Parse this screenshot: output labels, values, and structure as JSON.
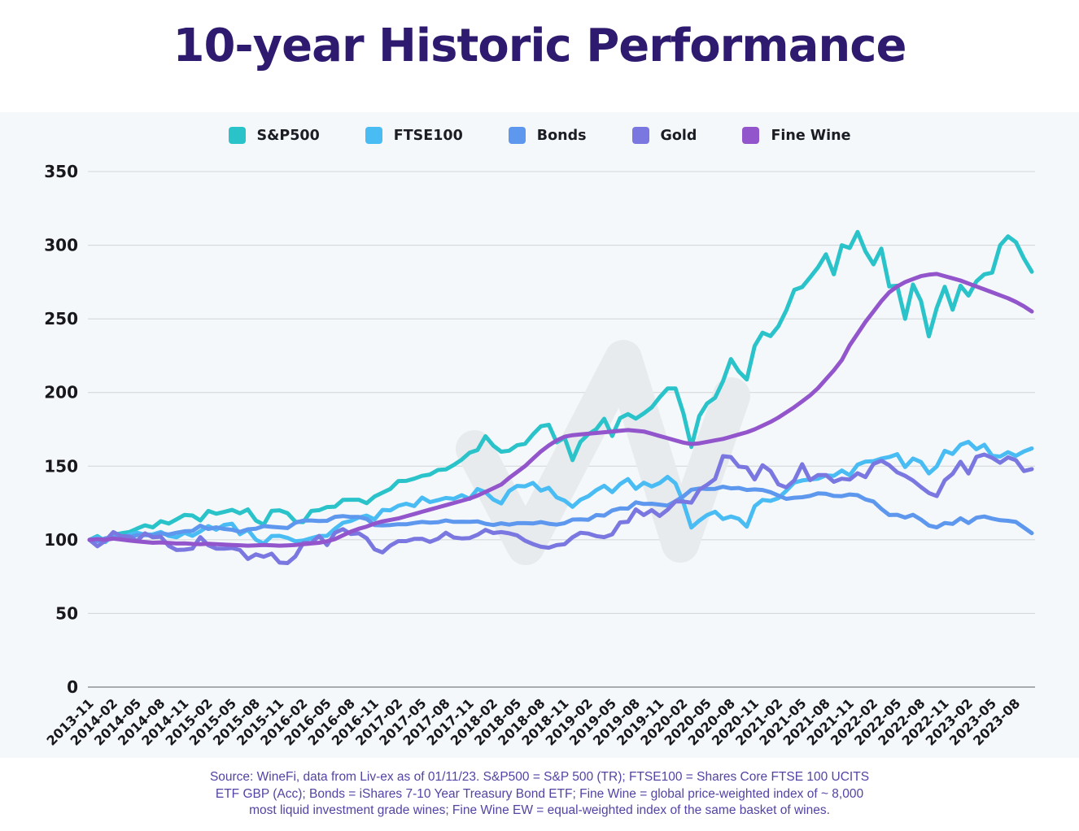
{
  "page": {
    "title": "10-year Historic Performance",
    "title_color": "#2e1a6e",
    "panel_tint": "#f4f8fa"
  },
  "chart_data": {
    "type": "line",
    "x_start": "2013-11",
    "x_end": "2023-10",
    "x_interval": "monthly",
    "tick_every_n_months": 3,
    "tick_labels": [
      "2013-11",
      "2014-02",
      "2014-05",
      "2014-08",
      "2014-11",
      "2015-02",
      "2015-05",
      "2015-08",
      "2015-11",
      "2016-02",
      "2016-05",
      "2016-08",
      "2016-11",
      "2017-02",
      "2017-05",
      "2017-08",
      "2017-11",
      "2018-02",
      "2018-05",
      "2018-08",
      "2018-11",
      "2019-02",
      "2019-05",
      "2019-08",
      "2019-11",
      "2020-02",
      "2020-05",
      "2020-08",
      "2020-11",
      "2021-02",
      "2021-05",
      "2021-08",
      "2021-11",
      "2022-02",
      "2022-05",
      "2022-08",
      "2022-11",
      "2023-02",
      "2023-05",
      "2023-08"
    ],
    "yticks": [
      "0",
      "50",
      "100",
      "150",
      "200",
      "250",
      "300",
      "350"
    ],
    "ylim": [
      0,
      350
    ],
    "grid": "horizontal",
    "grid_color": "#d6d9db",
    "baseline_color": "#8e9398",
    "tick_label_color": "#17171c",
    "legend_position": "top",
    "series": [
      {
        "name": "S&P500",
        "color": "#2ac3ca",
        "values": [
          100,
          102.5,
          99,
          103.4,
          104.4,
          105.2,
          107.6,
          109.8,
          108.4,
          112.6,
          111,
          113.9,
          116.9,
          116.5,
          113.1,
          119.6,
          117.7,
          118.9,
          120.3,
          118,
          120.6,
          113.1,
          110.3,
          119.7,
          120,
          118.1,
          112.3,
          112,
          119.6,
          120.1,
          122.2,
          122.5,
          127.1,
          127.2,
          127.2,
          124.9,
          129.4,
          132,
          134.6,
          139.9,
          140,
          141.5,
          143.4,
          144.3,
          147.4,
          147.8,
          150.8,
          154.4,
          159.1,
          160.9,
          170.3,
          163.9,
          159.8,
          160.5,
          164.2,
          165.2,
          171.5,
          177.1,
          178.1,
          166.1,
          169.3,
          154.1,
          166.5,
          171.7,
          175.1,
          182.2,
          170.5,
          182.6,
          185.3,
          182.3,
          185.8,
          189.9,
          196.7,
          202.7,
          202.7,
          186,
          163,
          184,
          192.6,
          196.5,
          207.7,
          222.7,
          214.3,
          208.8,
          231.6,
          240.6,
          238.3,
          245,
          255.8,
          269.7,
          271.6,
          278.1,
          285,
          293.8,
          280.3,
          300,
          298.1,
          309,
          295.8,
          287,
          297.7,
          272,
          272.5,
          250,
          273.3,
          262.1,
          238.1,
          257.5,
          271.8,
          256.2,
          272.5,
          265.8,
          275.5,
          280.2,
          281.4,
          300,
          306,
          302,
          291,
          282
        ]
      },
      {
        "name": "FTSE100",
        "color": "#49bcf4",
        "values": [
          100,
          101.8,
          98.5,
          103.3,
          100.4,
          103.5,
          104.8,
          103.5,
          103.6,
          105.3,
          102.6,
          101.7,
          104.8,
          102.7,
          105.8,
          109.3,
          106.8,
          110.1,
          110.9,
          103.8,
          106.9,
          100.1,
          97.4,
          102.5,
          102.7,
          101.3,
          99,
          99.5,
          101.1,
          102.5,
          102.7,
          107.5,
          111.5,
          112.8,
          115.1,
          116.4,
          113.9,
          120.3,
          120,
          123.1,
          124.5,
          122.9,
          128.7,
          125.6,
          126.9,
          128.4,
          127.8,
          130.3,
          127.8,
          134.5,
          132.3,
          127.3,
          124.7,
          133.1,
          136.6,
          136.3,
          138.6,
          133.4,
          135.3,
          128.8,
          126.6,
          122.4,
          127.2,
          129.6,
          133.7,
          136.7,
          132.4,
          137.8,
          141.2,
          134.6,
          138.8,
          136.2,
          138.5,
          142.7,
          138.3,
          125.3,
          108.3,
          113,
          116.8,
          119,
          114.1,
          115.8,
          114.2,
          108.9,
          122.8,
          127.1,
          126.4,
          128.3,
          133.3,
          138.9,
          140.3,
          141,
          141.5,
          143.7,
          143.4,
          147,
          143.8,
          151,
          153.1,
          153.4,
          155.1,
          156.2,
          158.1,
          149.4,
          155.2,
          152.8,
          145.1,
          149.8,
          160.4,
          158.3,
          164.5,
          166.5,
          161.5,
          164.5,
          157,
          156.5,
          159.5,
          157,
          160,
          162
        ]
      },
      {
        "name": "Bonds",
        "color": "#5e97ee",
        "values": [
          100,
          99.1,
          101,
          101.5,
          101,
          101.7,
          103.2,
          103.2,
          103,
          104.4,
          103.6,
          104.8,
          105.8,
          106,
          109.6,
          107.3,
          108.4,
          107.4,
          106.8,
          105.4,
          107.1,
          107.5,
          109.3,
          108.8,
          108.4,
          108,
          111.6,
          113,
          113.1,
          112.8,
          112.9,
          115.6,
          116.1,
          115.5,
          115.5,
          114.1,
          110,
          109.8,
          110,
          110.6,
          110.5,
          111.4,
          112.1,
          111.7,
          111.9,
          113.1,
          112.2,
          112.3,
          112.2,
          112.5,
          110.9,
          110,
          111.2,
          110.3,
          111.3,
          111.3,
          111.1,
          112,
          110.9,
          110.3,
          111.3,
          113.7,
          113.9,
          113.6,
          116.8,
          116.4,
          119.9,
          121.3,
          121.2,
          125.4,
          124.3,
          124.5,
          123.9,
          123.2,
          126.2,
          129.5,
          134,
          134.8,
          134.5,
          134.6,
          136,
          134.9,
          135.2,
          133.8,
          134.2,
          133.8,
          132.3,
          130,
          127.8,
          128.6,
          128.9,
          129.8,
          131.5,
          131.2,
          129.8,
          129.6,
          130.8,
          130.3,
          127.4,
          126,
          121,
          116.8,
          117,
          115.1,
          117,
          113.7,
          109.7,
          108.4,
          111.4,
          110.8,
          114.6,
          111.4,
          115,
          115.8,
          114.4,
          113.3,
          112.9,
          112.1,
          108.3,
          104.5
        ]
      },
      {
        "name": "Gold",
        "color": "#7a78e0",
        "values": [
          100,
          95.6,
          99.3,
          105.2,
          102.5,
          102.3,
          99.2,
          104.4,
          101.7,
          102.1,
          95.9,
          93.1,
          93.3,
          94,
          101.8,
          96.3,
          94,
          94,
          94.4,
          93,
          87,
          90.1,
          88.5,
          90.6,
          84.5,
          84.2,
          88.7,
          97.9,
          97.9,
          102.6,
          96.4,
          104.8,
          107.2,
          103.9,
          104.4,
          101,
          93.5,
          91.4,
          96.1,
          99.1,
          99.1,
          100.6,
          100.7,
          98.6,
          100.7,
          104.8,
          101.6,
          100.9,
          101.2,
          103.4,
          106.7,
          104.6,
          105.2,
          104.4,
          103,
          99.4,
          97.1,
          95.3,
          94.6,
          96.4,
          97,
          101.7,
          104.8,
          104.2,
          102.5,
          101.8,
          103.7,
          111.8,
          112.2,
          120.6,
          116.8,
          120.1,
          116.2,
          120.4,
          126.1,
          125.9,
          125.2,
          133.9,
          137.3,
          141.3,
          156.8,
          156.2,
          149.7,
          149.1,
          141,
          150.6,
          146.7,
          137.6,
          135.6,
          140.3,
          151.3,
          140.5,
          144,
          144,
          139.4,
          141.5,
          140.9,
          145.2,
          142.6,
          151.5,
          153.7,
          150.6,
          145.8,
          143.4,
          140.2,
          135.8,
          131.8,
          129.7,
          140.4,
          144.8,
          153,
          145,
          156.3,
          157.9,
          155.7,
          152.3,
          156,
          154,
          146.7,
          148
        ]
      },
      {
        "name": "Fine Wine",
        "color": "#9355cb",
        "values": [
          100,
          100.5,
          100,
          100.8,
          100.2,
          99.5,
          99,
          98.5,
          98,
          98.2,
          97.8,
          97.5,
          97.6,
          97.2,
          97,
          97.3,
          97,
          96.8,
          96.5,
          96.3,
          96,
          96.2,
          96.5,
          96.3,
          96,
          96.2,
          96.5,
          97,
          97.5,
          98,
          99,
          100.5,
          103,
          105.5,
          107.5,
          109,
          111,
          112.5,
          113.5,
          114.5,
          116,
          117.5,
          119,
          120.5,
          122,
          123.5,
          125,
          126.5,
          128,
          130,
          132.5,
          135,
          137.5,
          142,
          146,
          150,
          155,
          160,
          164,
          167.5,
          170,
          171,
          171.5,
          172,
          172.5,
          173,
          173.5,
          174,
          174.5,
          174,
          173.5,
          172,
          170.5,
          169,
          167.5,
          166,
          165,
          165.5,
          166.5,
          167.5,
          168.5,
          170,
          171.5,
          173,
          175,
          177.5,
          180,
          183,
          186.5,
          190,
          194,
          198,
          203,
          209,
          215,
          222,
          232,
          240,
          248,
          255,
          262,
          268,
          272,
          275,
          277,
          279,
          280,
          280.5,
          279,
          277.5,
          276,
          274,
          272,
          270,
          268,
          266,
          264,
          261.5,
          258.5,
          255
        ]
      }
    ],
    "watermark": {
      "name": "winefi-w-watermark",
      "color": "#e8ebee"
    }
  },
  "footer": {
    "color": "#5443a4",
    "lines": [
      "Source: WineFi, data from Liv-ex as of 01/11/23. S&P500 = S&P 500 (TR); FTSE100 = Shares Core FTSE 100 UCITS",
      "ETF GBP (Acc); Bonds = iShares 7-10 Year Treasury Bond ETF; Fine Wine = global price-weighted index of ~ 8,000",
      "most liquid investment grade wines; Fine Wine EW = equal-weighted index of the same basket of wines."
    ]
  }
}
